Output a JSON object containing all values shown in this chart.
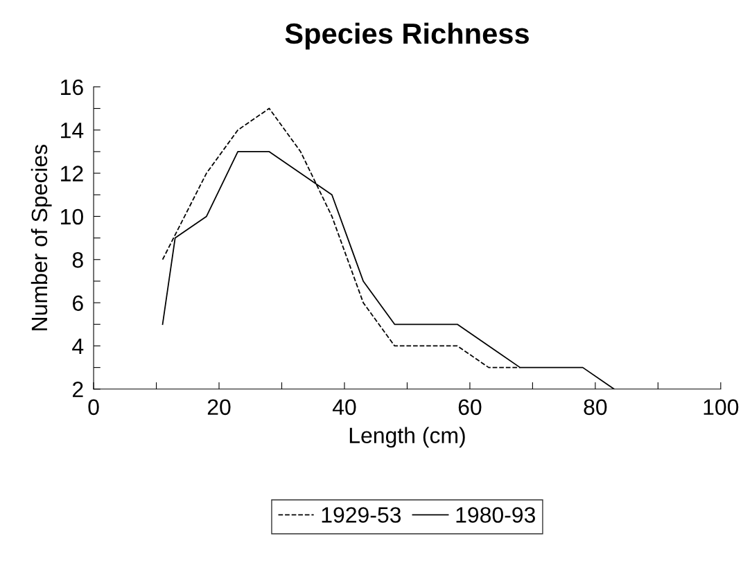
{
  "chart_data": {
    "type": "line",
    "title": "Species Richness",
    "xlabel": "Length (cm)",
    "ylabel": "Number of Species",
    "xlim": [
      0,
      100
    ],
    "ylim": [
      2,
      16
    ],
    "xticks": [
      0,
      {
        "value": 10,
        "label": null
      },
      20,
      {
        "value": 30,
        "label": null
      },
      40,
      {
        "value": 50,
        "label": null
      },
      60,
      {
        "value": 70,
        "label": null
      },
      80,
      {
        "value": 90,
        "label": null
      },
      100
    ],
    "yticks": [
      2,
      {
        "value": 3,
        "label": null
      },
      4,
      {
        "value": 5,
        "label": null
      },
      6,
      {
        "value": 7,
        "label": null
      },
      8,
      {
        "value": 9,
        "label": null
      },
      10,
      {
        "value": 11,
        "label": null
      },
      12,
      {
        "value": 13,
        "label": null
      },
      14,
      {
        "value": 15,
        "label": null
      },
      16
    ],
    "grid": false,
    "legend": "bottom",
    "marker": "none",
    "series": [
      {
        "name": "1929-53",
        "color": "#000000",
        "line_style": "dashed",
        "x": [
          11,
          18,
          23,
          28,
          33,
          38,
          43,
          48,
          58,
          63,
          68
        ],
        "values": [
          8,
          12,
          14,
          15,
          13,
          10,
          6,
          4,
          4,
          3,
          3
        ]
      },
      {
        "name": "1980-93",
        "color": "#000000",
        "line_style": "solid",
        "x": [
          11,
          13,
          18,
          23,
          28,
          38,
          43,
          48,
          58,
          68,
          78,
          83
        ],
        "values": [
          5,
          9,
          10,
          13,
          13,
          11,
          7,
          5,
          5,
          3,
          3,
          2
        ]
      }
    ]
  }
}
